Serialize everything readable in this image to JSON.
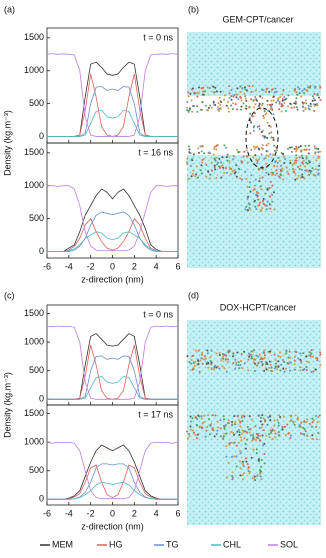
{
  "panels": {
    "a": "(a)",
    "b": "(b)",
    "c": "(c)",
    "d": "(d)",
    "b_title": "GEM-CPT/cancer",
    "d_title": "DOX-HCPT/cancer"
  },
  "chart_data": [
    {
      "type": "line",
      "annotation": "t = 0 ns",
      "ylabel": "Density (kg.m⁻³)",
      "xlim": [
        -6,
        6
      ],
      "xticks": [
        -6,
        -4,
        -2,
        0,
        2,
        4,
        6
      ],
      "ylim": [
        -100,
        1650
      ],
      "yticks": [
        0,
        500,
        1000,
        1500
      ],
      "x": [
        -6,
        -5.5,
        -5,
        -4.5,
        -4,
        -3.5,
        -3,
        -2.5,
        -2,
        -1.5,
        -1,
        -0.5,
        0,
        0.5,
        1,
        1.5,
        2,
        2.5,
        3,
        3.5,
        4,
        4.5,
        5,
        5.5,
        6
      ],
      "series": [
        {
          "name": "MEM",
          "color": "#333333",
          "values": [
            0,
            0,
            0,
            0,
            0,
            0,
            20,
            600,
            1100,
            1130,
            1050,
            950,
            930,
            950,
            1050,
            1130,
            1100,
            600,
            20,
            0,
            0,
            0,
            0,
            0,
            0
          ]
        },
        {
          "name": "HG",
          "color": "#e0605a",
          "values": [
            0,
            0,
            0,
            0,
            0,
            0,
            20,
            400,
            950,
            600,
            150,
            20,
            0,
            20,
            150,
            600,
            950,
            400,
            20,
            0,
            0,
            0,
            0,
            0,
            0
          ]
        },
        {
          "name": "TG",
          "color": "#6a8fd0",
          "values": [
            0,
            0,
            0,
            0,
            0,
            0,
            0,
            50,
            500,
            750,
            760,
            700,
            720,
            700,
            760,
            750,
            500,
            50,
            0,
            0,
            0,
            0,
            0,
            0,
            0
          ]
        },
        {
          "name": "CHL",
          "color": "#4fbcbc",
          "values": [
            0,
            0,
            0,
            0,
            0,
            0,
            0,
            20,
            200,
            380,
            400,
            300,
            280,
            300,
            400,
            380,
            200,
            20,
            0,
            0,
            0,
            0,
            0,
            0,
            0
          ]
        },
        {
          "name": "SOL",
          "color": "#c07ee0",
          "values": [
            1250,
            1260,
            1250,
            1255,
            1250,
            1240,
            1000,
            300,
            20,
            0,
            0,
            0,
            0,
            0,
            0,
            0,
            20,
            300,
            1000,
            1240,
            1250,
            1255,
            1250,
            1260,
            1250
          ]
        }
      ]
    },
    {
      "type": "line",
      "annotation": "t = 16 ns",
      "ylabel": "Density (kg.m⁻³)",
      "xlabel": "z-direction (nm)",
      "xlim": [
        -6,
        6
      ],
      "xticks": [
        -6,
        -4,
        -2,
        0,
        2,
        4,
        6
      ],
      "ylim": [
        -100,
        1650
      ],
      "yticks": [
        0,
        500,
        1000,
        1500
      ],
      "x": [
        -6,
        -5.5,
        -5,
        -4.5,
        -4,
        -3.5,
        -3,
        -2.5,
        -2,
        -1.5,
        -1,
        -0.5,
        0,
        0.5,
        1,
        1.5,
        2,
        2.5,
        3,
        3.5,
        4,
        4.5,
        5,
        5.5,
        6
      ],
      "series": [
        {
          "name": "MEM",
          "color": "#333333",
          "values": [
            0,
            0,
            0,
            0,
            50,
            100,
            300,
            550,
            700,
            850,
            950,
            900,
            800,
            900,
            950,
            850,
            700,
            550,
            350,
            100,
            30,
            0,
            0,
            0,
            0
          ]
        },
        {
          "name": "HG",
          "color": "#e0605a",
          "values": [
            0,
            0,
            0,
            0,
            20,
            80,
            200,
            400,
            500,
            300,
            150,
            50,
            20,
            50,
            150,
            300,
            500,
            400,
            200,
            50,
            10,
            0,
            0,
            0,
            0
          ]
        },
        {
          "name": "TG",
          "color": "#6a8fd0",
          "values": [
            0,
            0,
            0,
            0,
            0,
            20,
            80,
            200,
            400,
            550,
            600,
            580,
            560,
            580,
            600,
            550,
            400,
            200,
            80,
            20,
            0,
            0,
            0,
            0,
            0
          ]
        },
        {
          "name": "CHL",
          "color": "#4fbcbc",
          "values": [
            0,
            0,
            0,
            0,
            10,
            40,
            100,
            200,
            250,
            300,
            280,
            200,
            180,
            200,
            280,
            300,
            250,
            200,
            100,
            40,
            10,
            0,
            0,
            0,
            0
          ]
        },
        {
          "name": "SOL",
          "color": "#c07ee0",
          "values": [
            1000,
            1000,
            990,
            1000,
            1000,
            950,
            700,
            300,
            80,
            20,
            10,
            10,
            10,
            10,
            10,
            20,
            80,
            300,
            600,
            900,
            1000,
            1000,
            990,
            1000,
            1000
          ]
        }
      ]
    },
    {
      "type": "line",
      "annotation": "t = 0 ns",
      "ylabel": "Density (kg.m⁻³)",
      "xlim": [
        -6,
        6
      ],
      "xticks": [
        -6,
        -4,
        -2,
        0,
        2,
        4,
        6
      ],
      "ylim": [
        -100,
        1650
      ],
      "yticks": [
        0,
        500,
        1000,
        1500
      ],
      "x": [
        -6,
        -5.5,
        -5,
        -4.5,
        -4,
        -3.5,
        -3,
        -2.5,
        -2,
        -1.5,
        -1,
        -0.5,
        0,
        0.5,
        1,
        1.5,
        2,
        2.5,
        3,
        3.5,
        4,
        4.5,
        5,
        5.5,
        6
      ],
      "series": [
        {
          "name": "MEM",
          "color": "#333333",
          "values": [
            0,
            0,
            0,
            0,
            0,
            0,
            20,
            600,
            1100,
            1150,
            1050,
            950,
            930,
            950,
            1050,
            1150,
            1100,
            600,
            20,
            0,
            0,
            0,
            0,
            0,
            0
          ]
        },
        {
          "name": "HG",
          "color": "#e0605a",
          "values": [
            0,
            0,
            0,
            0,
            0,
            0,
            20,
            400,
            950,
            600,
            150,
            20,
            0,
            20,
            150,
            600,
            950,
            400,
            20,
            0,
            0,
            0,
            0,
            0,
            0
          ]
        },
        {
          "name": "TG",
          "color": "#6a8fd0",
          "values": [
            0,
            0,
            0,
            0,
            0,
            0,
            0,
            50,
            500,
            750,
            760,
            700,
            720,
            700,
            760,
            750,
            500,
            50,
            0,
            0,
            0,
            0,
            0,
            0,
            0
          ]
        },
        {
          "name": "CHL",
          "color": "#4fbcbc",
          "values": [
            0,
            0,
            0,
            0,
            0,
            0,
            0,
            20,
            200,
            380,
            400,
            300,
            280,
            300,
            400,
            380,
            200,
            20,
            0,
            0,
            0,
            0,
            0,
            0,
            0
          ]
        },
        {
          "name": "SOL",
          "color": "#c07ee0",
          "values": [
            1280,
            1270,
            1280,
            1275,
            1280,
            1260,
            1000,
            300,
            20,
            0,
            0,
            0,
            0,
            0,
            0,
            0,
            20,
            300,
            1000,
            1260,
            1280,
            1275,
            1280,
            1270,
            1280
          ]
        }
      ]
    },
    {
      "type": "line",
      "annotation": "t = 17 ns",
      "ylabel": "Density (kg.m⁻³)",
      "xlabel": "z-direction (nm)",
      "xlim": [
        -6,
        6
      ],
      "xticks": [
        -6,
        -4,
        -2,
        0,
        2,
        4,
        6
      ],
      "ylim": [
        -100,
        1650
      ],
      "yticks": [
        0,
        500,
        1000,
        1500
      ],
      "x": [
        -6,
        -5.5,
        -5,
        -4.5,
        -4,
        -3.5,
        -3,
        -2.5,
        -2,
        -1.5,
        -1,
        -0.5,
        0,
        0.5,
        1,
        1.5,
        2,
        2.5,
        3,
        3.5,
        4,
        4.5,
        5,
        5.5,
        6
      ],
      "series": [
        {
          "name": "MEM",
          "color": "#333333",
          "values": [
            0,
            0,
            0,
            0,
            20,
            60,
            150,
            400,
            650,
            850,
            950,
            900,
            850,
            900,
            950,
            850,
            650,
            400,
            150,
            60,
            20,
            0,
            0,
            0,
            0
          ]
        },
        {
          "name": "HG",
          "color": "#e0605a",
          "values": [
            0,
            0,
            0,
            0,
            10,
            40,
            100,
            300,
            550,
            600,
            300,
            80,
            30,
            80,
            300,
            600,
            550,
            300,
            100,
            40,
            10,
            0,
            0,
            0,
            0
          ]
        },
        {
          "name": "TG",
          "color": "#6a8fd0",
          "values": [
            0,
            0,
            0,
            0,
            0,
            10,
            40,
            120,
            300,
            550,
            620,
            620,
            600,
            620,
            620,
            550,
            300,
            120,
            40,
            10,
            0,
            0,
            0,
            0,
            0
          ]
        },
        {
          "name": "CHL",
          "color": "#4fbcbc",
          "values": [
            0,
            0,
            0,
            0,
            0,
            10,
            30,
            80,
            150,
            250,
            300,
            280,
            260,
            280,
            300,
            250,
            150,
            80,
            30,
            10,
            0,
            0,
            0,
            0,
            0
          ]
        },
        {
          "name": "SOL",
          "color": "#c07ee0",
          "values": [
            1000,
            980,
            1000,
            990,
            1000,
            980,
            850,
            500,
            150,
            30,
            10,
            10,
            10,
            10,
            10,
            30,
            150,
            500,
            850,
            980,
            1000,
            990,
            1000,
            980,
            1000
          ]
        }
      ]
    }
  ]
}
